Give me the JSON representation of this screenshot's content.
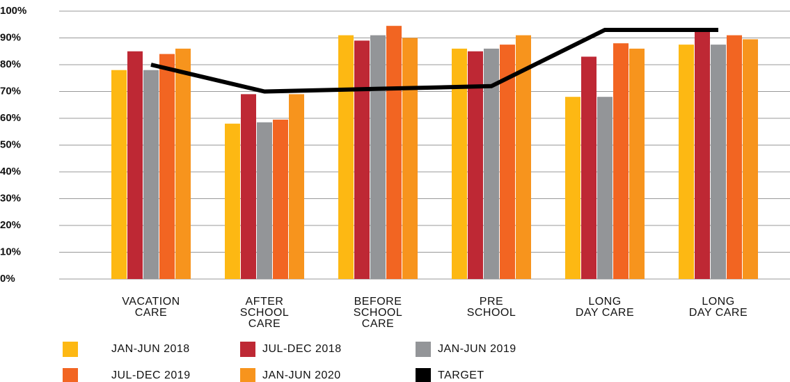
{
  "chart_data": {
    "type": "bar",
    "categories": [
      [
        "VACATION",
        "CARE"
      ],
      [
        "AFTER",
        "SCHOOL",
        "CARE"
      ],
      [
        "BEFORE",
        "SCHOOL",
        "CARE"
      ],
      [
        "PRE",
        "SCHOOL"
      ],
      [
        "LONG",
        "DAY CARE"
      ],
      [
        "LONG",
        "DAY CARE"
      ]
    ],
    "series": [
      {
        "name": "JAN-JUN 2018",
        "color": "#fdb813",
        "values": [
          78,
          58,
          91,
          86,
          68,
          87.5
        ]
      },
      {
        "name": "JUL-DEC 2018",
        "color": "#be2834",
        "values": [
          85,
          69,
          89,
          85,
          83,
          93
        ]
      },
      {
        "name": "JAN-JUN 2019",
        "color": "#939598",
        "values": [
          78,
          58.5,
          91,
          86,
          68,
          87.5
        ]
      },
      {
        "name": "JUL-DEC 2019",
        "color": "#f26522",
        "values": [
          84,
          59.5,
          94.5,
          87.5,
          88,
          91
        ]
      },
      {
        "name": "JAN-JUN 2020",
        "color": "#f7941d",
        "values": [
          86,
          69,
          90,
          91,
          86,
          89.5
        ]
      },
      {
        "name": "TARGET",
        "color": "#000000",
        "type": "line",
        "values": [
          80,
          70,
          71,
          72,
          93,
          93
        ]
      }
    ],
    "ylim": [
      0,
      100
    ],
    "yticks": [
      {
        "value": 0,
        "label": "0%"
      },
      {
        "value": 10,
        "label": "10%"
      },
      {
        "value": 20,
        "label": "20%"
      },
      {
        "value": 30,
        "label": "30%"
      },
      {
        "value": 40,
        "label": "40%"
      },
      {
        "value": 50,
        "label": "50%"
      },
      {
        "value": 60,
        "label": "60%"
      },
      {
        "value": 70,
        "label": "70%"
      },
      {
        "value": 80,
        "label": "80%"
      },
      {
        "value": 90,
        "label": "90%"
      },
      {
        "value": 100,
        "label": "100%"
      }
    ],
    "grid": true,
    "legend": "bottom"
  }
}
